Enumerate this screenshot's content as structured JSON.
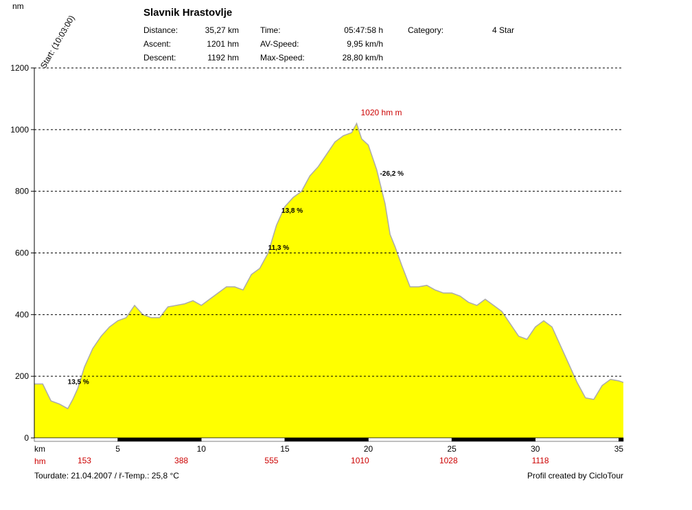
{
  "header": {
    "title": "Slavnik Hrastovlje",
    "col1": [
      {
        "label": "Distance:",
        "value": "35,27 km"
      },
      {
        "label": "Ascent:",
        "value": "1201 hm"
      },
      {
        "label": "Descent:",
        "value": "1192 hm"
      }
    ],
    "col2": [
      {
        "label": "Time:",
        "value": "05:47:58 h"
      },
      {
        "label": "AV-Speed:",
        "value": "9,95 km/h"
      },
      {
        "label": "Max-Speed:",
        "value": "28,80 km/h"
      }
    ],
    "col3": {
      "label": "Category:",
      "value": "4 Star"
    }
  },
  "chart_data": {
    "type": "area",
    "ylabel": "nm",
    "start_label": "Start: (10:03:00)",
    "xlabel": "km",
    "xlim": [
      0,
      35.27
    ],
    "ylim": [
      0,
      1200
    ],
    "yticks": [
      0,
      200,
      400,
      600,
      800,
      1000,
      1200
    ],
    "xticks": [
      5,
      10,
      15,
      20,
      25,
      30,
      35
    ],
    "grid": "horizontal-dashed",
    "fill_color": "#ffff00",
    "line_color": "#aaaaaa",
    "peak_label": "1020 hm m",
    "hm_row_label": "hm",
    "hm_row": [
      {
        "x": 3,
        "label": "153"
      },
      {
        "x": 8.8,
        "label": "388"
      },
      {
        "x": 14.2,
        "label": "555"
      },
      {
        "x": 19.5,
        "label": "1010"
      },
      {
        "x": 24.8,
        "label": "1028"
      },
      {
        "x": 30.3,
        "label": "1118"
      }
    ],
    "annotations": [
      {
        "x": 2.0,
        "y": 175,
        "label": "13,5 %"
      },
      {
        "x": 14.0,
        "y": 610,
        "label": "11,3 %"
      },
      {
        "x": 14.8,
        "y": 730,
        "label": "13,8 %"
      },
      {
        "x": 20.7,
        "y": 850,
        "label": "-26,2 %"
      }
    ],
    "x": [
      0,
      0.5,
      1,
      1.5,
      2,
      2.3,
      2.6,
      3,
      3.5,
      4,
      4.5,
      5,
      5.5,
      6,
      6.5,
      7,
      7.5,
      8,
      8.5,
      9,
      9.5,
      10,
      10.5,
      11,
      11.5,
      12,
      12.5,
      13,
      13.5,
      14,
      14.5,
      15,
      15.5,
      16,
      16.5,
      17,
      17.5,
      18,
      18.5,
      19,
      19.3,
      19.6,
      20,
      20.5,
      21,
      21.3,
      21.6,
      22,
      22.5,
      23,
      23.5,
      24,
      24.5,
      25,
      25.5,
      26,
      26.5,
      27,
      27.5,
      28,
      28.5,
      29,
      29.5,
      30,
      30.5,
      31,
      31.5,
      32,
      32.5,
      33,
      33.5,
      34,
      34.5,
      35,
      35.27
    ],
    "y": [
      175,
      175,
      120,
      110,
      95,
      125,
      160,
      230,
      290,
      330,
      360,
      380,
      390,
      430,
      400,
      390,
      390,
      425,
      430,
      435,
      445,
      430,
      450,
      470,
      490,
      490,
      480,
      530,
      550,
      600,
      690,
      750,
      780,
      800,
      850,
      880,
      920,
      960,
      980,
      990,
      1020,
      970,
      950,
      870,
      760,
      660,
      620,
      560,
      490,
      490,
      495,
      480,
      470,
      470,
      460,
      440,
      430,
      450,
      430,
      410,
      370,
      330,
      320,
      360,
      380,
      360,
      300,
      240,
      180,
      130,
      125,
      170,
      190,
      185,
      180
    ]
  },
  "footer": {
    "tourdate": "Tourdate: 21.04.2007  /  ř-Temp.: 25,8 °C",
    "credit": "Profil created by CicloTour"
  }
}
